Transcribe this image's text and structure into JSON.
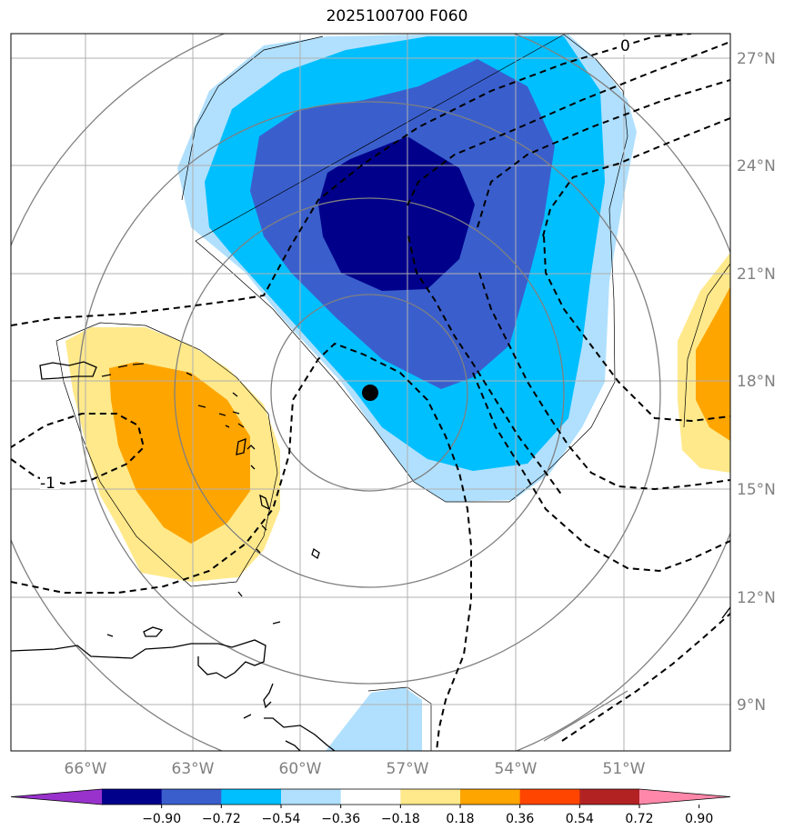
{
  "title": "2025100700 F060",
  "map": {
    "lon_labels": [
      "66°W",
      "63°W",
      "60°W",
      "57°W",
      "54°W",
      "51°W"
    ],
    "lat_labels": [
      "27°N",
      "24°N",
      "21°N",
      "18°N",
      "15°N",
      "12°N",
      "9°N"
    ],
    "contour_labels": [
      "0",
      "-1"
    ],
    "storm_marker": "center-dot"
  },
  "colorbar": {
    "ticks": [
      "−0.90",
      "−0.72",
      "−0.54",
      "−0.36",
      "−0.18",
      "0.18",
      "0.36",
      "0.54",
      "0.72",
      "0.90"
    ],
    "colors": [
      "#9932cc",
      "#00008b",
      "#3a5fcd",
      "#00bfff",
      "#b0e0fe",
      "#ffffff",
      "#ffe98b",
      "#ffa500",
      "#ff4500",
      "#b22222",
      "#ff88aa"
    ]
  },
  "colors": {
    "neg_strong": "#00008b",
    "neg_mid": "#3a5fcd",
    "neg_light": "#00bfff",
    "neg_pale": "#b0e0fe",
    "pos_pale": "#ffe98b",
    "pos_mid": "#ffa500"
  }
}
